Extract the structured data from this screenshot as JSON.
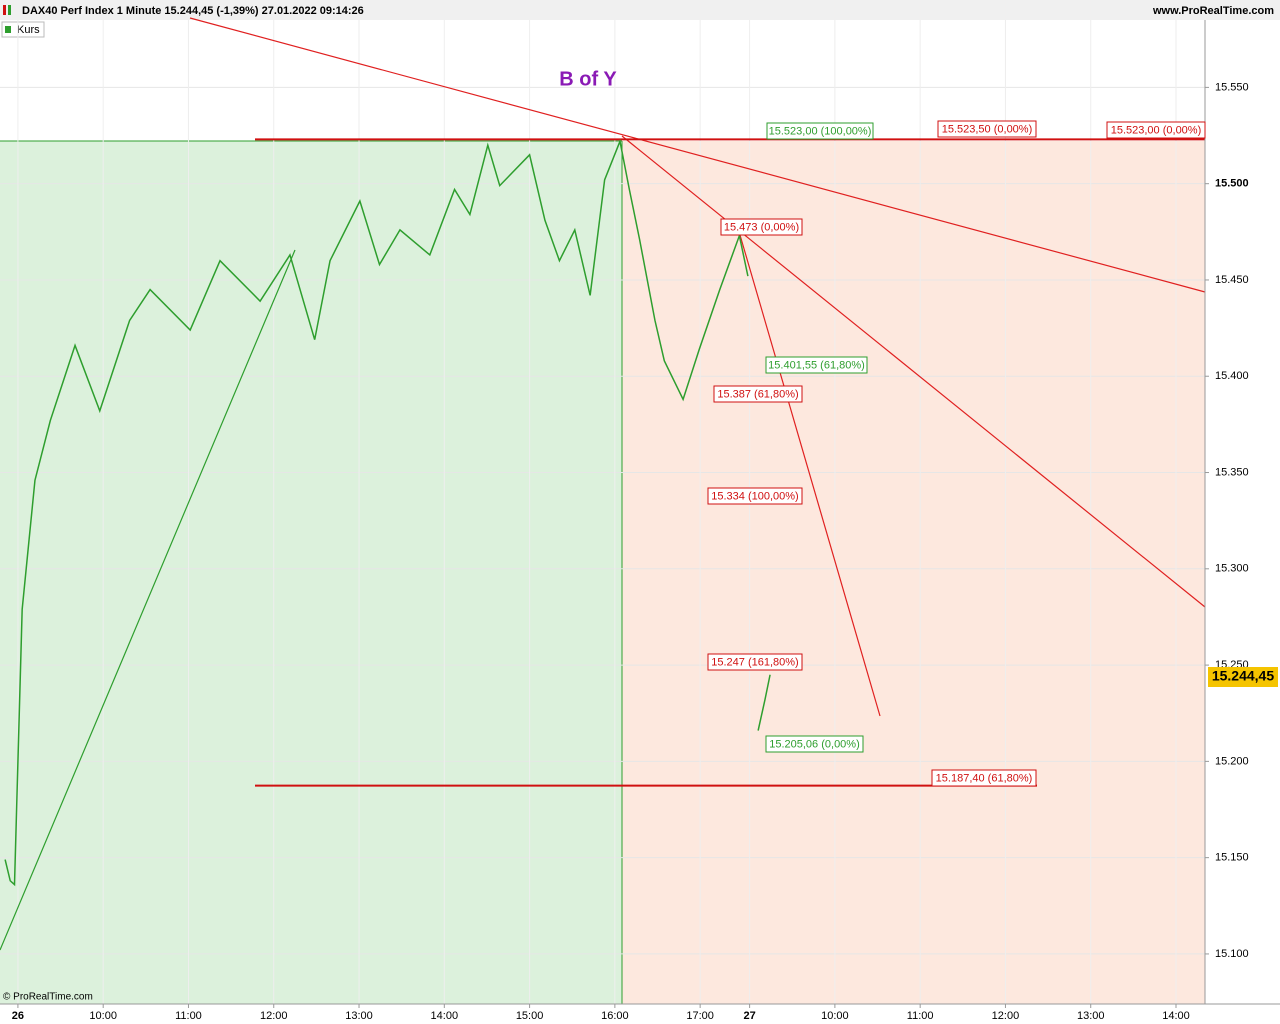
{
  "header": {
    "title": "DAX40 Perf Index 1 Minute 15.244,45 (-1,39%) 27.01.2022 09:14:26",
    "site": "www.ProRealTime.com",
    "legend": "Kurs",
    "footer": "© ProRealTime.com",
    "last_price": "15.244,45"
  },
  "chart_data": {
    "type": "line",
    "title": "B of Y",
    "x": [
      -0.15,
      -0.09,
      -0.04,
      0.05,
      0.2,
      0.38,
      0.67,
      0.96,
      1.31,
      1.55,
      2.02,
      2.37,
      2.84,
      3.19,
      3.48,
      3.66,
      4.01,
      4.24,
      4.48,
      4.83,
      5.12,
      5.3,
      5.51,
      5.65,
      6.0,
      6.18,
      6.35,
      6.53,
      6.71,
      6.88,
      7.06,
      7.17,
      7.29,
      7.47,
      7.58,
      7.8,
      7.99,
      8.23,
      8.46,
      8.56,
      8.62,
      8.68,
      8.76,
      8.82
    ],
    "series": [
      {
        "name": "Kurs",
        "color": "#2e9e2e",
        "values": [
          15149,
          15138,
          15136,
          15279,
          15346,
          15377,
          15416,
          15382,
          15429,
          15445,
          15424,
          15460,
          15439,
          15463,
          15419,
          15460,
          15491,
          15458,
          15476,
          15463,
          15497,
          15484,
          15520,
          15499,
          15515,
          15481,
          15460,
          15476,
          15442,
          15502,
          15522,
          15497,
          15471,
          15429,
          15408,
          15388,
          15414,
          15445,
          15473,
          15452,
          null,
          15216,
          15232,
          15245
        ]
      }
    ],
    "xlim": [
      -0.21,
      13.92
    ],
    "ylim": [
      15074,
      15585
    ],
    "xticks": [
      {
        "value": 0,
        "label": "26"
      },
      {
        "value": 1,
        "label": "10:00"
      },
      {
        "value": 2,
        "label": "11:00"
      },
      {
        "value": 3,
        "label": "12:00"
      },
      {
        "value": 4,
        "label": "13:00"
      },
      {
        "value": 5,
        "label": "14:00"
      },
      {
        "value": 6,
        "label": "15:00"
      },
      {
        "value": 7,
        "label": "16:00"
      },
      {
        "value": 8,
        "label": "17:00"
      },
      {
        "value": 8.58,
        "label": "27"
      },
      {
        "value": 9.58,
        "label": "10:00"
      },
      {
        "value": 10.58,
        "label": "11:00"
      },
      {
        "value": 11.58,
        "label": "12:00"
      },
      {
        "value": 12.58,
        "label": "13:00"
      },
      {
        "value": 13.58,
        "label": "14:00"
      }
    ],
    "yticks": [
      {
        "value": 15100,
        "label": "15.100"
      },
      {
        "value": 15150,
        "label": "15.150"
      },
      {
        "value": 15200,
        "label": "15.200"
      },
      {
        "value": 15250,
        "label": "15.250"
      },
      {
        "value": 15300,
        "label": "15.300"
      },
      {
        "value": 15350,
        "label": "15.350"
      },
      {
        "value": 15400,
        "label": "15.400"
      },
      {
        "value": 15450,
        "label": "15.450"
      },
      {
        "value": 15500,
        "label": "15.500"
      },
      {
        "value": 15550,
        "label": "15.550"
      }
    ],
    "levels": [
      15523,
      15187.4
    ],
    "annotations": [
      {
        "text": "15.523,00 (100,00%)",
        "color": "#2e9e2e"
      },
      {
        "text": "15.523,50 (0,00%)",
        "color": "#d01010"
      },
      {
        "text": "15.523,00 (0,00%)",
        "color": "#d01010"
      },
      {
        "text": "15.473 (0,00%)",
        "color": "#d01010"
      },
      {
        "text": "15.401,55 (61,80%)",
        "color": "#2e9e2e"
      },
      {
        "text": "15.387 (61,80%)",
        "color": "#d01010"
      },
      {
        "text": "15.334 (100,00%)",
        "color": "#d01010"
      },
      {
        "text": "15.247 (161,80%)",
        "color": "#d01010"
      },
      {
        "text": "15.205,06 (0,00%)",
        "color": "#2e9e2e"
      },
      {
        "text": "15.187,40 (61,80%)",
        "color": "#d01010"
      }
    ]
  }
}
